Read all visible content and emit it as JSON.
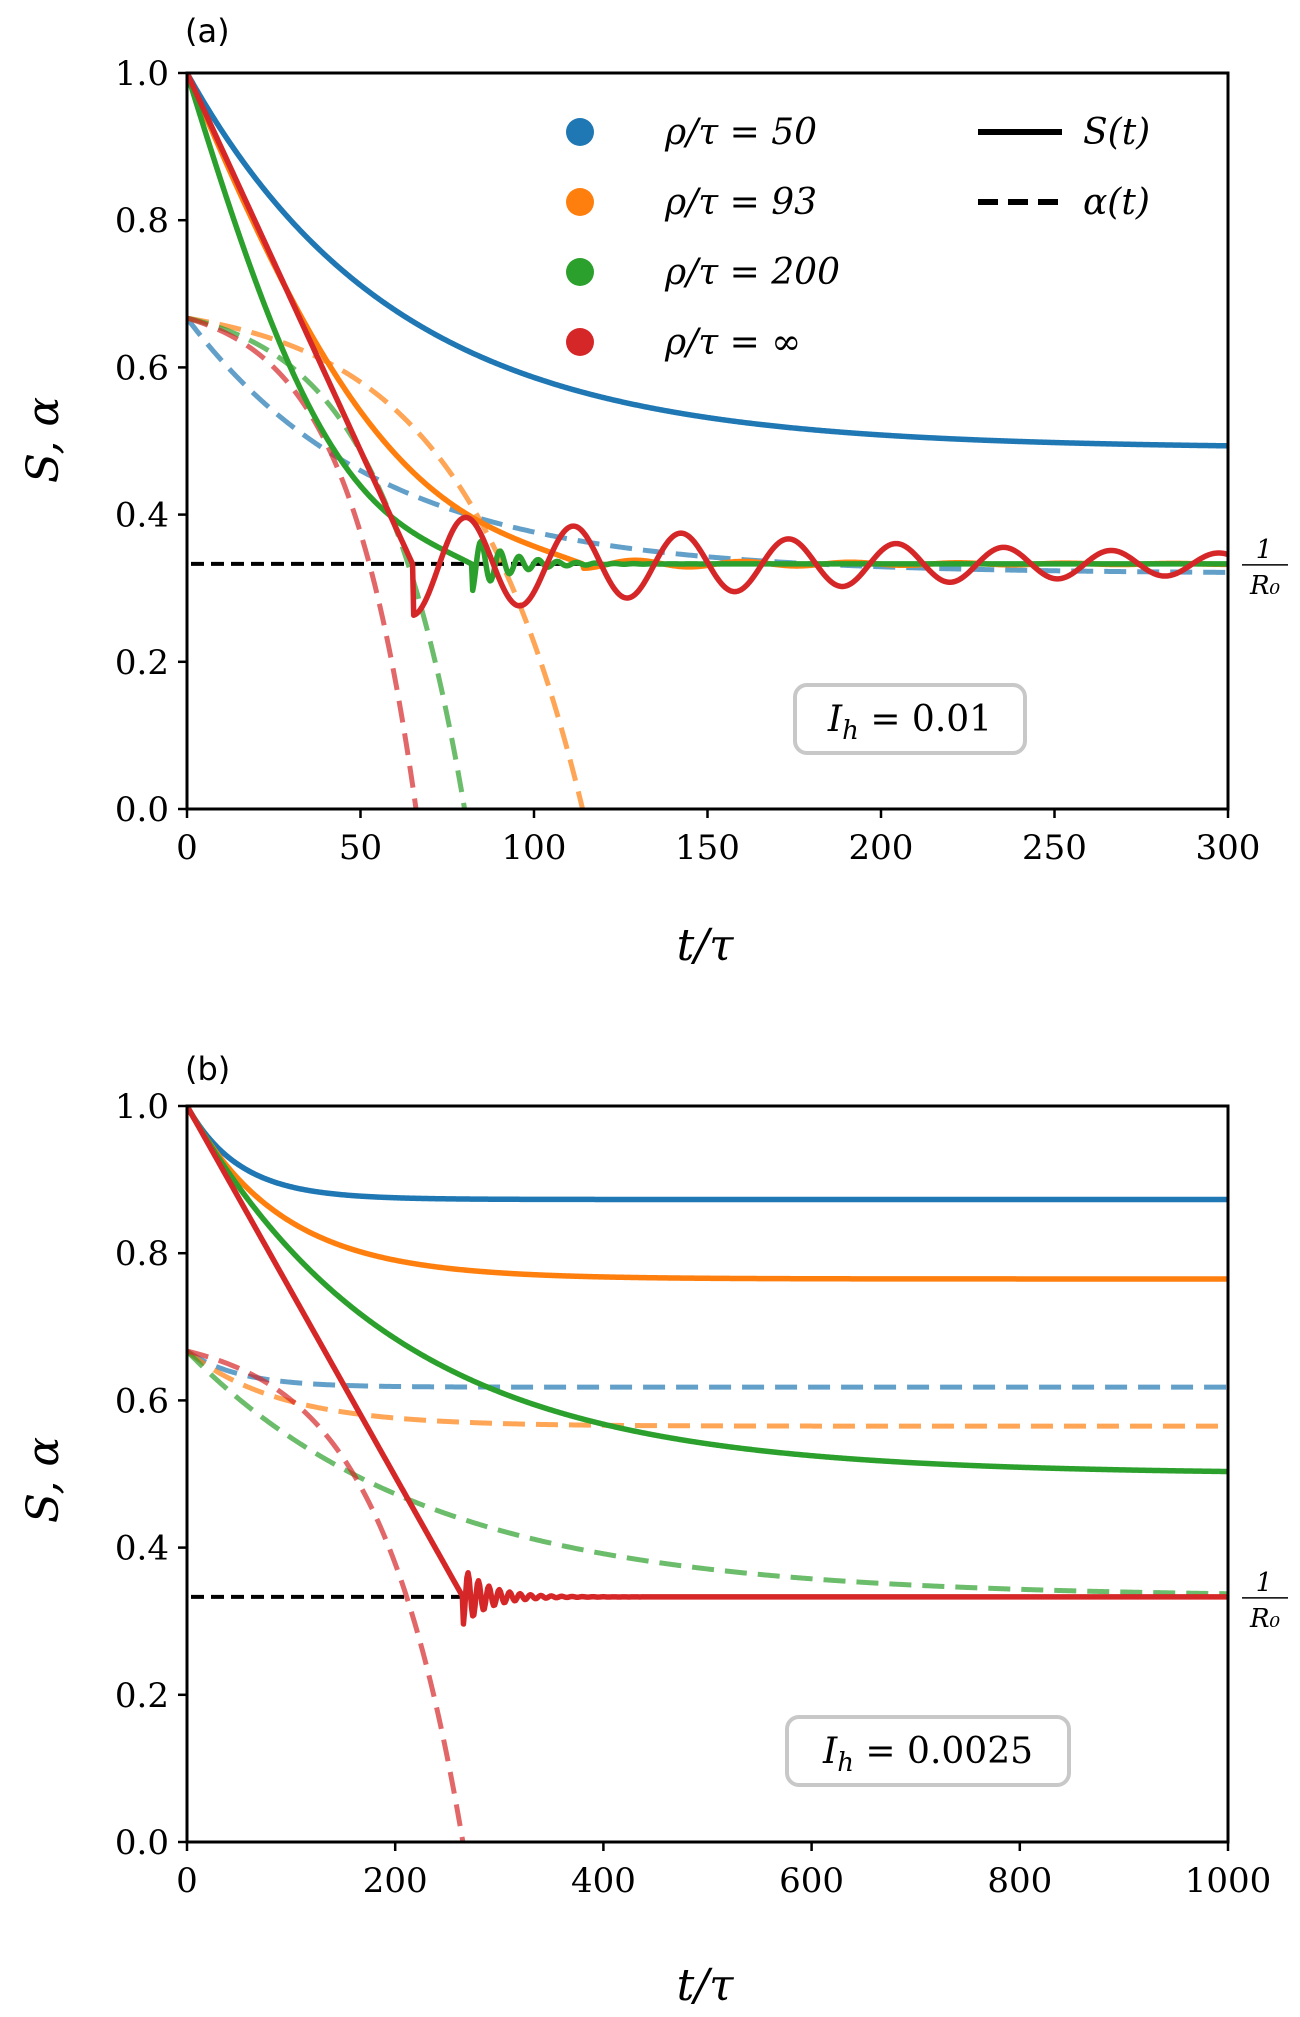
{
  "colors": {
    "blue": "#1f77b4",
    "orange": "#ff7f0e",
    "green": "#2ca02c",
    "red": "#d62728",
    "reference": "#000000"
  },
  "legend": {
    "series": [
      {
        "label": "ρ/τ = 50",
        "color": "#1f77b4"
      },
      {
        "label": "ρ/τ = 93",
        "color": "#ff7f0e"
      },
      {
        "label": "ρ/τ = 200",
        "color": "#2ca02c"
      },
      {
        "label": "ρ/τ = ∞",
        "color": "#d62728"
      }
    ],
    "styles": [
      {
        "label": "S(t)",
        "linestyle": "solid"
      },
      {
        "label": "α(t)",
        "linestyle": "dashed"
      }
    ],
    "placement": "top-right (panel a)"
  },
  "chart_data": [
    {
      "type": "line",
      "panel_label": "(a)",
      "xlabel": "t/τ",
      "ylabel": "S, α",
      "xlim": [
        0,
        300
      ],
      "ylim": [
        0.0,
        1.0
      ],
      "xticks": [
        "0",
        "50",
        "100",
        "150",
        "200",
        "250",
        "300"
      ],
      "yticks": [
        "0.0",
        "0.2",
        "0.4",
        "0.6",
        "0.8",
        "1.0"
      ],
      "grid": false,
      "annotation": "I_h = 0.01",
      "reference_line": {
        "y": 0.333,
        "label_numerator": "1",
        "label_denominator": "R₀",
        "x_range": [
          0,
          300
        ]
      },
      "series": [
        {
          "color": "blue",
          "quantity": "S",
          "kind": "decay",
          "y0": 1.0,
          "yinf": 0.49,
          "scale": 60
        },
        {
          "color": "blue",
          "quantity": "alpha",
          "kind": "decay",
          "y0": 0.667,
          "yinf": 0.32,
          "scale": 55
        },
        {
          "color": "orange",
          "quantity": "S",
          "kind": "sat-decay",
          "y0": 1.0,
          "yinf": 0.333,
          "scale": 85,
          "rate": 0.0085,
          "t_eq": 114,
          "amp": 0.006,
          "period": 31,
          "damp": 80
        },
        {
          "color": "orange",
          "quantity": "alpha",
          "kind": "exp-growth",
          "y0": 0.667,
          "yinf": 0.333,
          "t_end": 114
        },
        {
          "color": "green",
          "quantity": "S",
          "kind": "sat-decay",
          "y0": 1.0,
          "yinf": 0.333,
          "scale": 100,
          "rate": 0.0085,
          "t_eq": 82,
          "amp": 0.04,
          "period": 5.5,
          "damp": 10
        },
        {
          "color": "green",
          "quantity": "alpha",
          "kind": "exp-growth",
          "y0": 0.667,
          "yinf": 0.333,
          "t_end": 80
        },
        {
          "color": "red",
          "quantity": "S",
          "kind": "linear-osc",
          "y0": 1.0,
          "yinf": 0.333,
          "t_eq": 65,
          "amp": 0.07,
          "period": 31,
          "damp": 150,
          "zero_at": 65
        },
        {
          "color": "red",
          "quantity": "alpha",
          "kind": "exp-growth",
          "y0": 0.667,
          "yinf": 0.333,
          "t_end": 66
        }
      ]
    },
    {
      "type": "line",
      "panel_label": "(b)",
      "xlabel": "t/τ",
      "ylabel": "S, α",
      "xlim": [
        0,
        1000
      ],
      "ylim": [
        0.0,
        1.0
      ],
      "xticks": [
        "0",
        "200",
        "400",
        "600",
        "800",
        "1000"
      ],
      "yticks": [
        "0.0",
        "0.2",
        "0.4",
        "0.6",
        "0.8",
        "1.0"
      ],
      "grid": false,
      "annotation": "I_h = 0.0025",
      "reference_line": {
        "y": 0.333,
        "label_numerator": "1",
        "label_denominator": "R₀",
        "x_range": [
          0,
          265
        ]
      },
      "series": [
        {
          "color": "blue",
          "quantity": "S",
          "kind": "decay",
          "y0": 1.0,
          "yinf": 0.873,
          "scale": 50
        },
        {
          "color": "blue",
          "quantity": "alpha",
          "kind": "decay",
          "y0": 0.667,
          "yinf": 0.618,
          "scale": 50
        },
        {
          "color": "orange",
          "quantity": "S",
          "kind": "decay",
          "y0": 1.0,
          "yinf": 0.765,
          "scale": 90
        },
        {
          "color": "orange",
          "quantity": "alpha",
          "kind": "decay",
          "y0": 0.667,
          "yinf": 0.565,
          "scale": 90
        },
        {
          "color": "green",
          "quantity": "S",
          "kind": "decay",
          "y0": 1.0,
          "yinf": 0.5,
          "scale": 200
        },
        {
          "color": "green",
          "quantity": "alpha",
          "kind": "decay",
          "y0": 0.667,
          "yinf": 0.333,
          "scale": 230
        },
        {
          "color": "red",
          "quantity": "S",
          "kind": "linear-osc",
          "y0": 1.0,
          "yinf": 0.333,
          "t_eq": 265,
          "amp": 0.04,
          "period": 10,
          "damp": 25,
          "zero_at": 265
        },
        {
          "color": "red",
          "quantity": "alpha",
          "kind": "exp-growth",
          "y0": 0.667,
          "yinf": 0.333,
          "t_end": 265
        }
      ]
    }
  ]
}
